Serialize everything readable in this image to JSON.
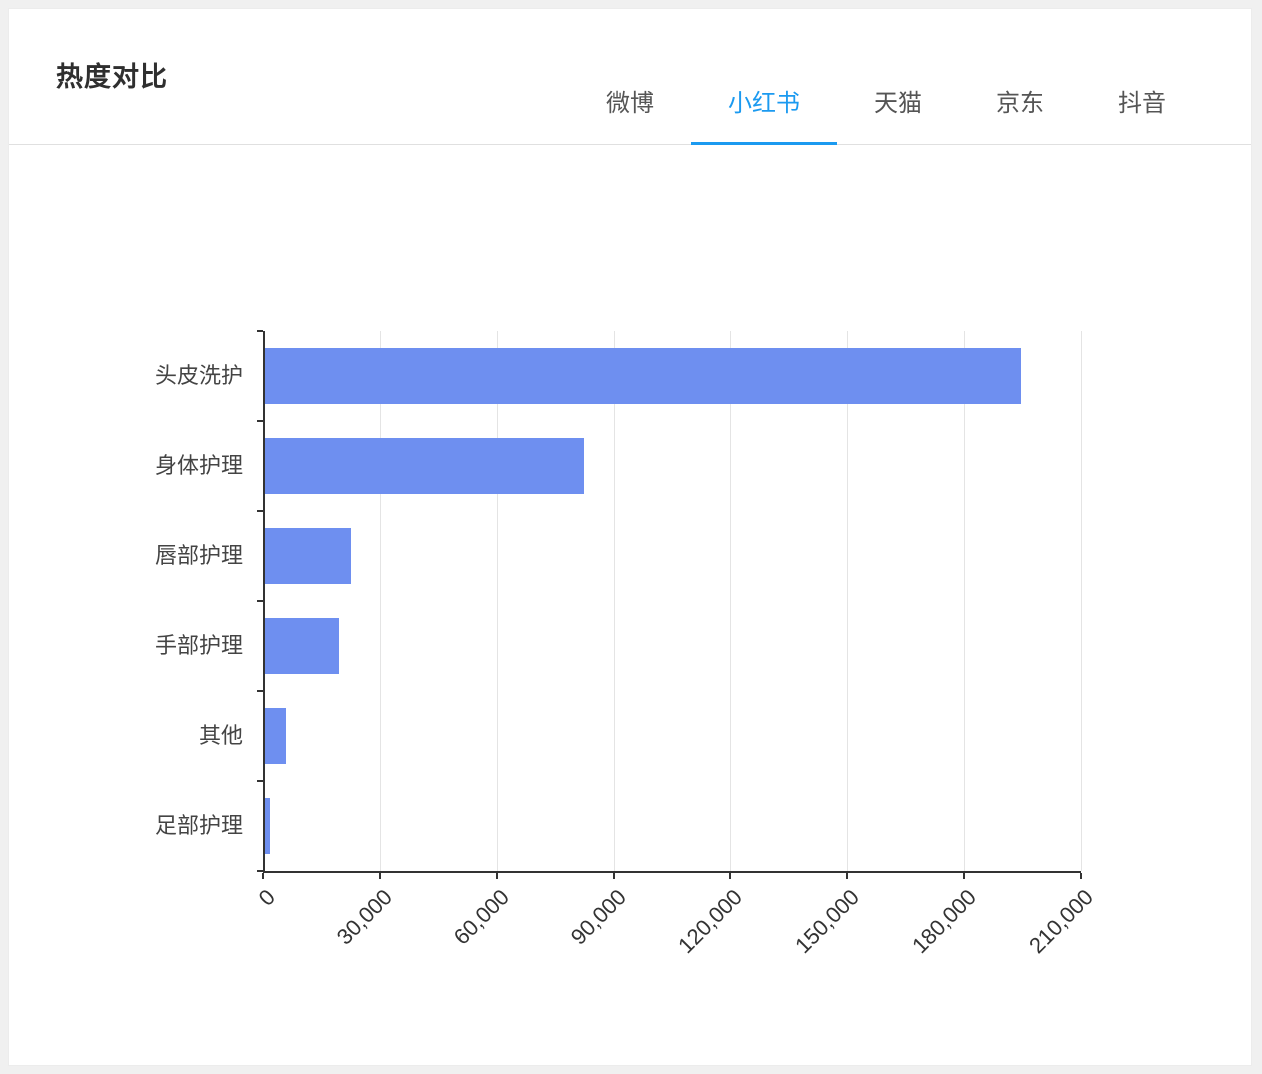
{
  "header": {
    "title": "热度对比"
  },
  "tabs": {
    "active_color": "#1b9af0",
    "inactive_color": "#555555",
    "items": [
      {
        "key": "weibo",
        "label": "微博",
        "active": false
      },
      {
        "key": "xiaohongshu",
        "label": "小红书",
        "active": true
      },
      {
        "key": "tmall",
        "label": "天猫",
        "active": false
      },
      {
        "key": "jd",
        "label": "京东",
        "active": false
      },
      {
        "key": "douyin",
        "label": "抖音",
        "active": false
      }
    ]
  },
  "chart_data": {
    "type": "bar",
    "orientation": "horizontal",
    "title": "热度对比",
    "series_name": "小红书",
    "categories": [
      "头皮洗护",
      "身体护理",
      "唇部护理",
      "手部护理",
      "其他",
      "足部护理"
    ],
    "values": [
      194000,
      82000,
      22000,
      19000,
      5400,
      1200
    ],
    "xlabel": "",
    "ylabel": "",
    "xlim": [
      0,
      210000
    ],
    "x_ticks": [
      0,
      30000,
      60000,
      90000,
      120000,
      150000,
      180000,
      210000
    ],
    "x_tick_labels": [
      "0",
      "30,000",
      "60,000",
      "90,000",
      "120,000",
      "150,000",
      "180,000",
      "210,000"
    ],
    "bar_color": "#6e8ff0",
    "axis_color": "#333333",
    "grid": true,
    "legend_position": "none"
  }
}
